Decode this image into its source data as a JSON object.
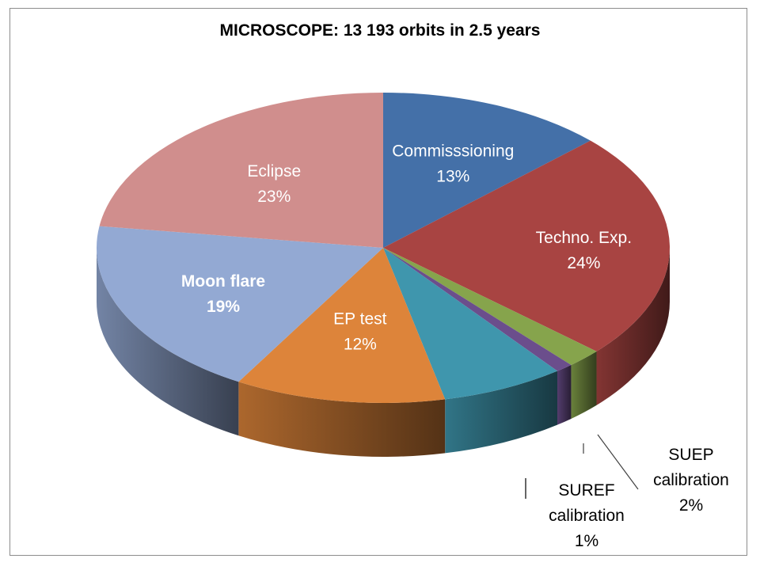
{
  "chart_data": {
    "type": "pie",
    "style": "3d",
    "title": "MICROSCOPE: 13 193 orbits in 2.5 years",
    "categories": [
      "Commisssioning",
      "Techno. Exp.",
      "SUEP calibration",
      "SUREF calibration",
      "",
      "EP test",
      "Moon flare",
      "Eclipse"
    ],
    "values": [
      13,
      24,
      2,
      1,
      7,
      12,
      19,
      23
    ],
    "labels": [
      "13%",
      "24%",
      "2%",
      "1%",
      "",
      "12%",
      "19%",
      "23%"
    ],
    "colors": [
      "#4470a8",
      "#a84442",
      "#86a44c",
      "#6b4e8c",
      "#3f96ad",
      "#dd843a",
      "#93a9d3",
      "#d08e8d"
    ]
  }
}
